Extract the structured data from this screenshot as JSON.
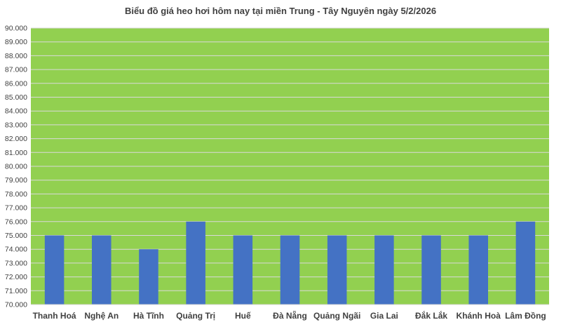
{
  "chart_data": {
    "type": "bar",
    "title": "Biểu đồ giá heo hơi hôm nay tại miền Trung - Tây Nguyên ngày 5/2/2026",
    "categories": [
      "Thanh Hoá",
      "Nghệ An",
      "Hà Tĩnh",
      "Quảng Trị",
      "Huế",
      "Đà Nẵng",
      "Quảng Ngãi",
      "Gia Lai",
      "Đắk Lắk",
      "Khánh Hoà",
      "Lâm Đồng"
    ],
    "values": [
      75000,
      75000,
      74000,
      76000,
      75000,
      75000,
      75000,
      75000,
      75000,
      75000,
      76000
    ],
    "ylim": [
      70000,
      90000
    ],
    "ytick_step": 1000,
    "ytick_labels": [
      "70.000",
      "71.000",
      "72.000",
      "73.000",
      "74.000",
      "75.000",
      "76.000",
      "77.000",
      "78.000",
      "79.000",
      "80.000",
      "81.000",
      "82.000",
      "83.000",
      "84.000",
      "85.000",
      "86.000",
      "87.000",
      "88.000",
      "89.000",
      "90.000"
    ],
    "grid": true,
    "legend": "none",
    "colors": {
      "plot_background": "#92d050",
      "bar": "#4472c4",
      "gridline": "#d9d9d9",
      "text": "#404040"
    }
  }
}
